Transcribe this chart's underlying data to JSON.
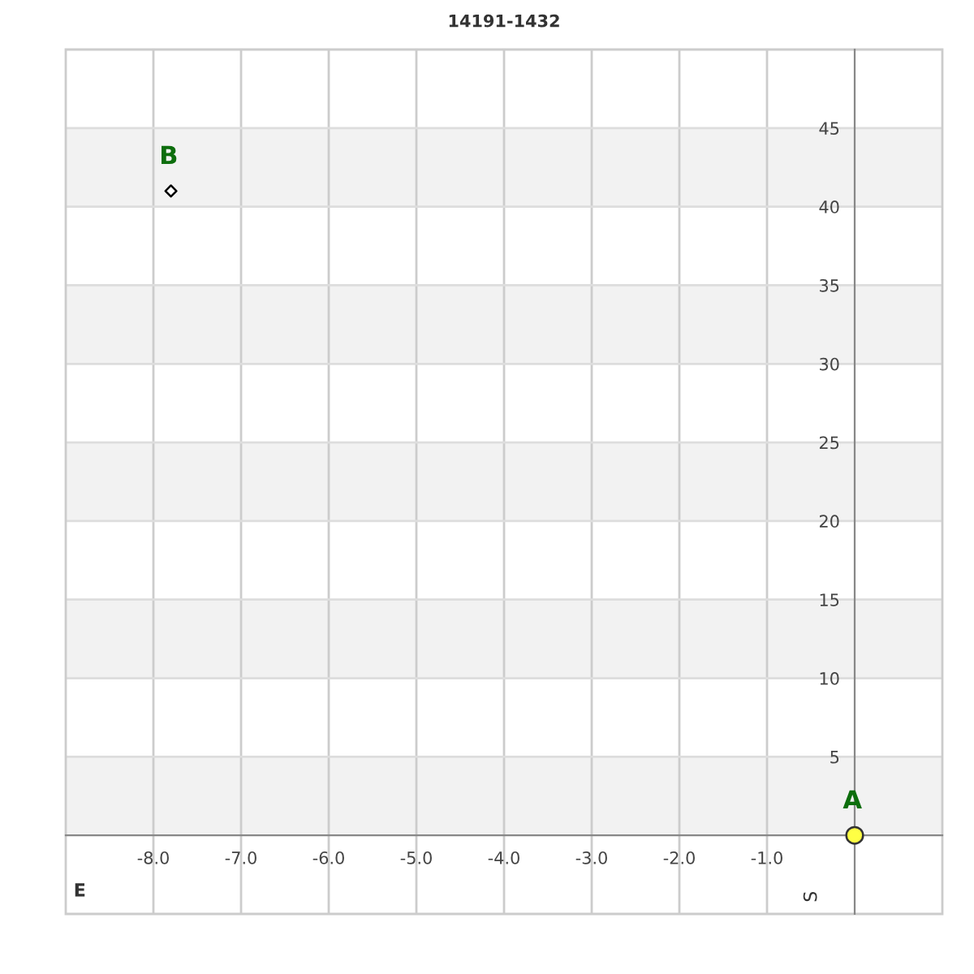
{
  "chart_data": {
    "type": "scatter",
    "title": "14191-1432",
    "xlabel": "E",
    "ylabel": "S",
    "series": [
      {
        "name": "A",
        "color": "#ffff44",
        "marker": "circle",
        "x": [
          0
        ],
        "values": [
          0
        ]
      },
      {
        "name": "B",
        "color": "#000000",
        "marker": "diamond",
        "x": [
          -7.8
        ],
        "values": [
          41
        ]
      }
    ],
    "xlim": [
      -9,
      1
    ],
    "ylim": [
      -5,
      50
    ],
    "xticks": [
      {
        "value": -8,
        "label": "-8.0"
      },
      {
        "value": -7,
        "label": "-7.0"
      },
      {
        "value": -6,
        "label": "-6.0"
      },
      {
        "value": -5,
        "label": "-5.0"
      },
      {
        "value": -4,
        "label": "-4.0"
      },
      {
        "value": -3,
        "label": "-3.0"
      },
      {
        "value": -2,
        "label": "-2.0"
      },
      {
        "value": -1,
        "label": "-1.0"
      }
    ],
    "yticks": [
      5,
      10,
      15,
      20,
      25,
      30,
      35,
      40,
      45
    ],
    "grid": true,
    "bands": [
      {
        "axis": "y",
        "from": 0,
        "to": 5,
        "color": "#f2f2f2"
      },
      {
        "axis": "y",
        "from": 10,
        "to": 15,
        "color": "#f2f2f2"
      },
      {
        "axis": "y",
        "from": 20,
        "to": 25,
        "color": "#f2f2f2"
      },
      {
        "axis": "y",
        "from": 30,
        "to": 35,
        "color": "#f2f2f2"
      },
      {
        "axis": "y",
        "from": 40,
        "to": 45,
        "color": "#f2f2f2"
      }
    ]
  }
}
